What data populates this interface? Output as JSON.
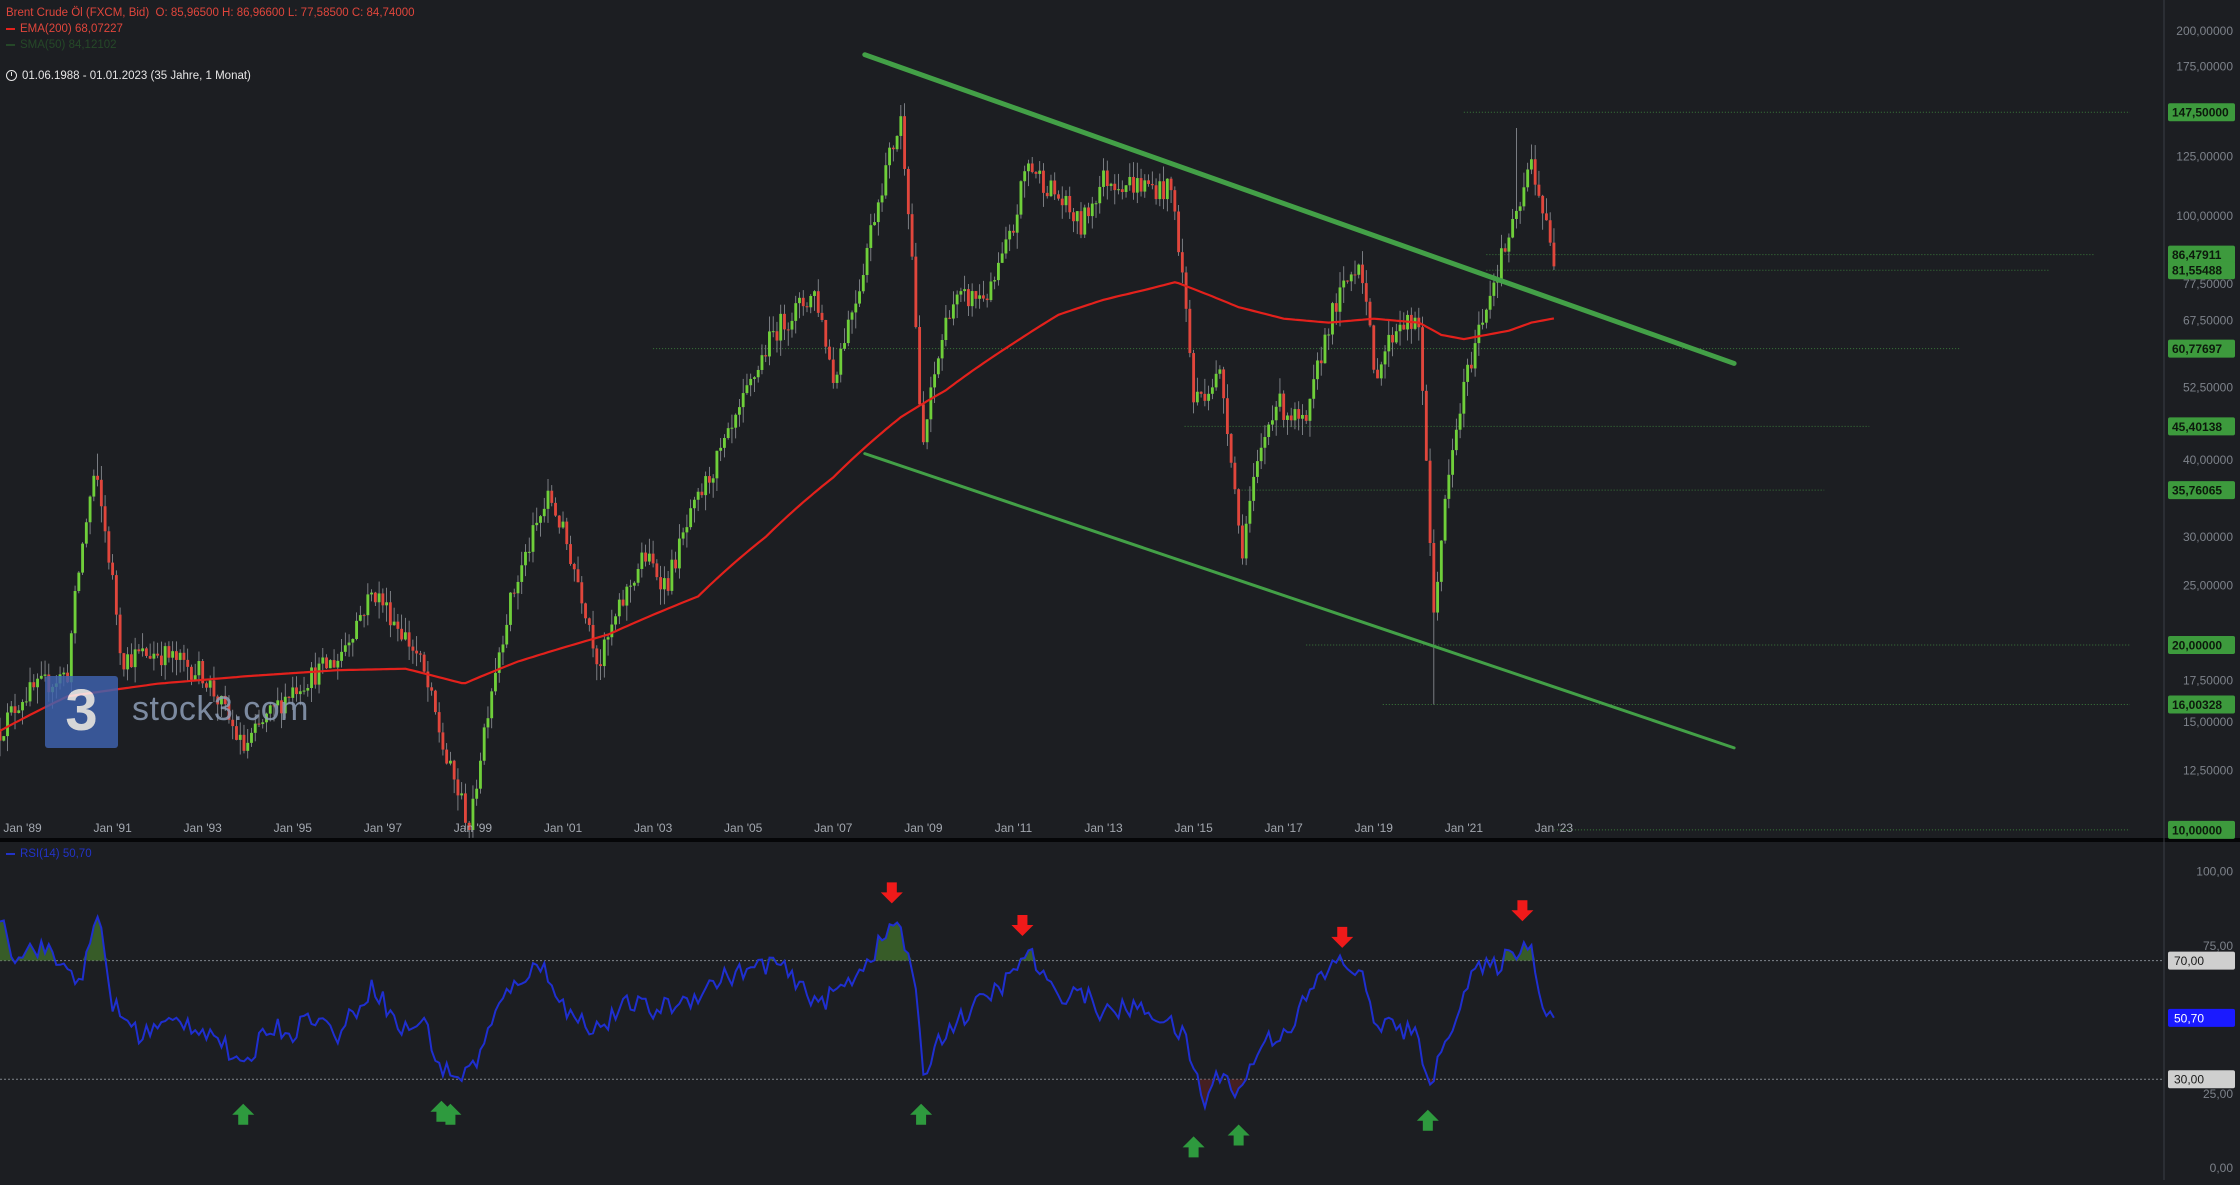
{
  "header": {
    "instrument": "Brent Crude Öl (FXCM, Bid)",
    "ohlc": "O: 85,96500  H: 86,96600  L: 77,58500  C: 84,74000",
    "ema_legend": "EMA(200)  68,07227",
    "faded_legend": "SMA(50)  84,12102",
    "range": "01.06.1988 - 01.01.2023   (35 Jahre, 1 Monat)"
  },
  "brand": {
    "logo_glyph": "3",
    "wordmark": "stock3.com"
  },
  "rsi_legend": "RSI(14)  50,70",
  "colors": {
    "background": "#1c1e22",
    "bull": "#6fcf3a",
    "bear": "#e0463c",
    "ema": "#e3211c",
    "trend": "#43a047",
    "rsi": "#1f2fd0",
    "badge_green": "#3d9a3d",
    "badge_grey": "#cfcfcf",
    "badge_blue": "#1a1aff",
    "arrow_up": "#2e9a3e",
    "arrow_down": "#f01a1a"
  },
  "chart_data": [
    {
      "type": "candlestick",
      "title": "Brent Crude Öl (FXCM, Bid)",
      "interval": "1 Monat",
      "y_scale": "log",
      "y_ticks": [
        {
          "v": 200,
          "l": "200,00000"
        },
        {
          "v": 175,
          "l": "175,00000"
        },
        {
          "v": 125,
          "l": "125,00000"
        },
        {
          "v": 100,
          "l": "100,00000"
        },
        {
          "v": 77.5,
          "l": "77,50000"
        },
        {
          "v": 67.5,
          "l": "67,50000"
        },
        {
          "v": 52.5,
          "l": "52,50000"
        },
        {
          "v": 40,
          "l": "40,00000"
        },
        {
          "v": 30,
          "l": "30,00000"
        },
        {
          "v": 25,
          "l": "25,00000"
        },
        {
          "v": 17.5,
          "l": "17,50000"
        },
        {
          "v": 15,
          "l": "15,00000"
        },
        {
          "v": 12.5,
          "l": "12,50000"
        }
      ],
      "x_ticks": [
        "Jan '89",
        "Jan '91",
        "Jan '93",
        "Jan '95",
        "Jan '97",
        "Jan '99",
        "Jan '01",
        "Jan '03",
        "Jan '05",
        "Jan '07",
        "Jan '09",
        "Jan '11",
        "Jan '13",
        "Jan '15",
        "Jan '17",
        "Jan '19",
        "Jan '21",
        "Jan '23"
      ],
      "price_key": [
        [
          1988.5,
          14.5
        ],
        [
          1989.0,
          16.5
        ],
        [
          1990.0,
          18
        ],
        [
          1990.6,
          38
        ],
        [
          1991.2,
          19
        ],
        [
          1992.0,
          19.5
        ],
        [
          1993.0,
          18
        ],
        [
          1993.9,
          13.5
        ],
        [
          1995.0,
          17
        ],
        [
          1996.0,
          19
        ],
        [
          1996.8,
          24.5
        ],
        [
          1997.8,
          19
        ],
        [
          1998.4,
          13
        ],
        [
          1998.95,
          10
        ],
        [
          1999.8,
          23
        ],
        [
          2000.7,
          35
        ],
        [
          2001.8,
          18.5
        ],
        [
          2002.8,
          28
        ],
        [
          2003.3,
          25
        ],
        [
          2004.8,
          45
        ],
        [
          2005.7,
          65
        ],
        [
          2006.6,
          75
        ],
        [
          2007.0,
          54
        ],
        [
          2007.6,
          78
        ],
        [
          2008.5,
          143
        ],
        [
          2008.95,
          40
        ],
        [
          2009.6,
          72
        ],
        [
          2010.5,
          75
        ],
        [
          2011.0,
          95
        ],
        [
          2011.3,
          122
        ],
        [
          2012.5,
          96
        ],
        [
          2013.0,
          115
        ],
        [
          2014.5,
          110
        ],
        [
          2015.0,
          50
        ],
        [
          2015.6,
          55
        ],
        [
          2016.05,
          28
        ],
        [
          2016.8,
          50
        ],
        [
          2017.5,
          45
        ],
        [
          2018.0,
          67
        ],
        [
          2018.7,
          86
        ],
        [
          2019.0,
          55
        ],
        [
          2019.6,
          68
        ],
        [
          2020.0,
          65
        ],
        [
          2020.3,
          21
        ],
        [
          2021.0,
          52
        ],
        [
          2021.8,
          84
        ],
        [
          2022.2,
          100
        ],
        [
          2022.5,
          123
        ],
        [
          2022.9,
          90
        ],
        [
          2023.0,
          84.7
        ]
      ],
      "spikes": [
        [
          1990.7,
          41
        ],
        [
          1998.95,
          9.6
        ],
        [
          2008.55,
          147
        ],
        [
          2016.05,
          27.1
        ],
        [
          2020.3,
          16
        ],
        [
          2022.2,
          139
        ]
      ],
      "ema200_key": [
        [
          1988.5,
          14.5
        ],
        [
          1990.0,
          16.5
        ],
        [
          1992.0,
          17.3
        ],
        [
          1994.0,
          17.8
        ],
        [
          1996.0,
          18.2
        ],
        [
          1997.5,
          18.3
        ],
        [
          1998.8,
          17.3
        ],
        [
          2000.0,
          18.8
        ],
        [
          2002.0,
          20.8
        ],
        [
          2004.0,
          24
        ],
        [
          2005.5,
          30
        ],
        [
          2007.0,
          37.5
        ],
        [
          2008.5,
          47
        ],
        [
          2009.5,
          52
        ],
        [
          2011.0,
          62
        ],
        [
          2012.0,
          69
        ],
        [
          2013.0,
          73
        ],
        [
          2014.0,
          76
        ],
        [
          2014.6,
          78
        ],
        [
          2015.2,
          75
        ],
        [
          2016.0,
          71
        ],
        [
          2017.0,
          68
        ],
        [
          2018.0,
          67
        ],
        [
          2019.0,
          68
        ],
        [
          2020.0,
          67
        ],
        [
          2020.5,
          64
        ],
        [
          2021.0,
          63
        ],
        [
          2022.0,
          65
        ],
        [
          2022.5,
          67
        ],
        [
          2023.0,
          68.07
        ]
      ],
      "ema200": 68.07227,
      "trendlines": [
        {
          "from": [
            2007.7,
            183
          ],
          "to": [
            2027.0,
            57.5
          ],
          "width": 5
        },
        {
          "from": [
            2007.7,
            41
          ],
          "to": [
            2027.0,
            13.6
          ],
          "width": 3
        }
      ],
      "levels": [
        {
          "value": 147.5,
          "label": "147,50000",
          "x0": 2021.0,
          "x1": 2036.0
        },
        {
          "value": 86.47911,
          "label": "86,47911",
          "x0": 2021.5,
          "x1": 2035.0
        },
        {
          "value": 81.55488,
          "label": "81,55488",
          "x0": 2021.5,
          "x1": 2034.0
        },
        {
          "value": 60.77697,
          "label": "60,77697",
          "x0": 2003.0,
          "x1": 2032.0
        },
        {
          "value": 45.40138,
          "label": "45,40138",
          "x0": 2014.8,
          "x1": 2030.0
        },
        {
          "value": 35.76065,
          "label": "35,76065",
          "x0": 2016.0,
          "x1": 2029.0
        },
        {
          "value": 20.0,
          "label": "20,00000",
          "x0": 2017.5,
          "x1": 2037.0
        },
        {
          "value": 16.00328,
          "label": "16,00328",
          "x0": 2019.2,
          "x1": 2037.0
        },
        {
          "value": 10.0,
          "label": "10,00000",
          "x0": 2023.0,
          "x1": 2037.0
        }
      ],
      "y_range": [
        9.7,
        210
      ],
      "x_range": [
        1988.5,
        2036.5
      ]
    },
    {
      "type": "line",
      "title": "RSI(14)",
      "y_ticks": [
        {
          "v": 100,
          "l": "100,00"
        },
        {
          "v": 75,
          "l": "75,00"
        },
        {
          "v": 25,
          "l": "25,00"
        },
        {
          "v": 0,
          "l": "0,00"
        }
      ],
      "levels": [
        {
          "v": 70,
          "l": "70,00"
        },
        {
          "v": 30,
          "l": "30,00"
        }
      ],
      "last_value": {
        "v": 50.7,
        "l": "50,70"
      },
      "rsi_key": [
        [
          1988.5,
          86
        ],
        [
          1988.8,
          72
        ],
        [
          1989.4,
          75
        ],
        [
          1989.9,
          68
        ],
        [
          1990.3,
          64
        ],
        [
          1990.7,
          85
        ],
        [
          1991.0,
          55
        ],
        [
          1991.6,
          45
        ],
        [
          1992.5,
          50
        ],
        [
          1993.3,
          45
        ],
        [
          1993.9,
          32
        ],
        [
          1994.4,
          48
        ],
        [
          1995.0,
          46
        ],
        [
          1995.4,
          52
        ],
        [
          1996.0,
          45
        ],
        [
          1996.8,
          62
        ],
        [
          1997.4,
          46
        ],
        [
          1997.9,
          50
        ],
        [
          1998.3,
          33
        ],
        [
          1998.8,
          31
        ],
        [
          1999.1,
          37
        ],
        [
          1999.6,
          55
        ],
        [
          2000.1,
          65
        ],
        [
          2000.6,
          68
        ],
        [
          2001.1,
          52
        ],
        [
          2001.8,
          47
        ],
        [
          2002.5,
          56
        ],
        [
          2003.0,
          53
        ],
        [
          2003.8,
          57
        ],
        [
          2004.5,
          64
        ],
        [
          2005.2,
          67
        ],
        [
          2005.7,
          70
        ],
        [
          2006.3,
          60
        ],
        [
          2006.8,
          56
        ],
        [
          2007.4,
          64
        ],
        [
          2007.9,
          73
        ],
        [
          2008.45,
          84
        ],
        [
          2008.8,
          62
        ],
        [
          2009.0,
          32
        ],
        [
          2009.4,
          45
        ],
        [
          2010.2,
          55
        ],
        [
          2011.0,
          65
        ],
        [
          2011.3,
          74
        ],
        [
          2011.9,
          58
        ],
        [
          2012.5,
          60
        ],
        [
          2013.0,
          52
        ],
        [
          2013.6,
          54
        ],
        [
          2014.2,
          52
        ],
        [
          2014.8,
          44
        ],
        [
          2015.0,
          34
        ],
        [
          2015.25,
          22
        ],
        [
          2015.6,
          33
        ],
        [
          2016.0,
          25
        ],
        [
          2016.5,
          42
        ],
        [
          2017.1,
          47
        ],
        [
          2017.7,
          62
        ],
        [
          2018.2,
          70
        ],
        [
          2018.7,
          66
        ],
        [
          2019.0,
          50
        ],
        [
          2019.4,
          48
        ],
        [
          2019.9,
          45
        ],
        [
          2020.3,
          29
        ],
        [
          2020.8,
          52
        ],
        [
          2021.2,
          66
        ],
        [
          2021.7,
          68
        ],
        [
          2022.2,
          74
        ],
        [
          2022.45,
          76
        ],
        [
          2022.8,
          54
        ],
        [
          2023.0,
          50.7
        ]
      ],
      "signals": [
        {
          "dir": "up",
          "year": 1993.9,
          "value": 18
        },
        {
          "dir": "up",
          "year": 1998.3,
          "value": 19
        },
        {
          "dir": "up",
          "year": 1998.5,
          "value": 18
        },
        {
          "dir": "up",
          "year": 2008.95,
          "value": 18
        },
        {
          "dir": "up",
          "year": 2015.0,
          "value": 7
        },
        {
          "dir": "up",
          "year": 2016.0,
          "value": 11
        },
        {
          "dir": "up",
          "year": 2020.2,
          "value": 16
        },
        {
          "dir": "down",
          "year": 2008.3,
          "value": 93
        },
        {
          "dir": "down",
          "year": 2011.2,
          "value": 82
        },
        {
          "dir": "down",
          "year": 2018.3,
          "value": 78
        },
        {
          "dir": "down",
          "year": 2022.3,
          "value": 87
        }
      ],
      "y_range": [
        -4,
        110
      ]
    }
  ]
}
